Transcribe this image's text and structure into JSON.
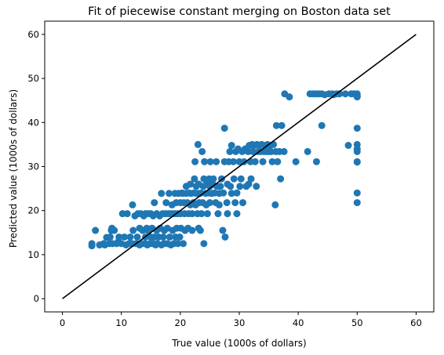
{
  "chart_data": {
    "type": "scatter",
    "title": "Fit of piecewise constant merging on Boston data set",
    "xlabel": "True value (1000s of dollars)",
    "ylabel": "Predicted value (1000s of dollars)",
    "xlim": [
      -3,
      63
    ],
    "ylim": [
      -3,
      63
    ],
    "xticks": [
      "0",
      "10",
      "20",
      "30",
      "40",
      "50",
      "60"
    ],
    "yticks": [
      "0",
      "10",
      "20",
      "30",
      "40",
      "50",
      "60"
    ],
    "grid": false,
    "legend": "none",
    "colors": {
      "points": "#1f77b4",
      "reference_line": "#000000"
    },
    "reference_line": {
      "x": [
        0,
        60
      ],
      "y": [
        0,
        60
      ]
    },
    "series": [
      {
        "points": [
          [
            5,
            12.5
          ],
          [
            5,
            12
          ],
          [
            5.6,
            15.5
          ],
          [
            6.3,
            12.2
          ],
          [
            7,
            12.5
          ],
          [
            7.2,
            12.2
          ],
          [
            7.5,
            13.9
          ],
          [
            8,
            12.5
          ],
          [
            8.1,
            14
          ],
          [
            8.3,
            15.5
          ],
          [
            8.4,
            16
          ],
          [
            8.5,
            12.5
          ],
          [
            8.8,
            15.5
          ],
          [
            9.2,
            12.5
          ],
          [
            9.5,
            13
          ],
          [
            9.6,
            14
          ],
          [
            10,
            12.5
          ],
          [
            10.2,
            19.3
          ],
          [
            10.5,
            14
          ],
          [
            10.8,
            12.2
          ],
          [
            11,
            19.3
          ],
          [
            11.3,
            12.5
          ],
          [
            11.5,
            14
          ],
          [
            11.8,
            12.5
          ],
          [
            11.9,
            21.3
          ],
          [
            12,
            15.5
          ],
          [
            12.3,
            18.8
          ],
          [
            12.5,
            12.5
          ],
          [
            12.7,
            14
          ],
          [
            12.8,
            19.3
          ],
          [
            13.1,
            16
          ],
          [
            13.1,
            12.2
          ],
          [
            13.3,
            19.3
          ],
          [
            13.5,
            12.5
          ],
          [
            13.6,
            15.5
          ],
          [
            13.8,
            18.8
          ],
          [
            14,
            12.5
          ],
          [
            14.1,
            14
          ],
          [
            14.1,
            19.3
          ],
          [
            14.3,
            16
          ],
          [
            14.4,
            12.2
          ],
          [
            14.5,
            15.5
          ],
          [
            14.6,
            19.3
          ],
          [
            14.8,
            12.5
          ],
          [
            15,
            14
          ],
          [
            15,
            19.3
          ],
          [
            15.2,
            16
          ],
          [
            15.3,
            12.5
          ],
          [
            15.4,
            18.8
          ],
          [
            15.6,
            14
          ],
          [
            15.6,
            21.8
          ],
          [
            15.8,
            12.2
          ],
          [
            16,
            15.5
          ],
          [
            16,
            19.3
          ],
          [
            16.1,
            12.5
          ],
          [
            16.3,
            14
          ],
          [
            16.5,
            18.8
          ],
          [
            16.6,
            16
          ],
          [
            16.8,
            12.2
          ],
          [
            16.8,
            23.9
          ],
          [
            17,
            19.3
          ],
          [
            17.1,
            14
          ],
          [
            17.2,
            12.5
          ],
          [
            17.3,
            15.5
          ],
          [
            17.5,
            19.3
          ],
          [
            17.6,
            21.8
          ],
          [
            17.8,
            12.5
          ],
          [
            17.8,
            16
          ],
          [
            18,
            19.3
          ],
          [
            18.1,
            23.9
          ],
          [
            18.2,
            14
          ],
          [
            18.4,
            12.2
          ],
          [
            18.5,
            19.3
          ],
          [
            18.6,
            21.3
          ],
          [
            18.7,
            15.5
          ],
          [
            18.9,
            12.5
          ],
          [
            19,
            19.3
          ],
          [
            19.1,
            23.9
          ],
          [
            19.2,
            14
          ],
          [
            19.3,
            21.8
          ],
          [
            19.4,
            16
          ],
          [
            19.5,
            19.3
          ],
          [
            19.6,
            12.5
          ],
          [
            19.7,
            23.9
          ],
          [
            19.9,
            14
          ],
          [
            20,
            21.8
          ],
          [
            20,
            19.3
          ],
          [
            20.1,
            16
          ],
          [
            20.3,
            24
          ],
          [
            20.4,
            23.9
          ],
          [
            20.5,
            12.5
          ],
          [
            20.6,
            21.8
          ],
          [
            20.7,
            19.3
          ],
          [
            20.8,
            15.5
          ],
          [
            21,
            23.9
          ],
          [
            21,
            25.5
          ],
          [
            21.2,
            21.8
          ],
          [
            21.3,
            16
          ],
          [
            21.4,
            19.3
          ],
          [
            21.5,
            24
          ],
          [
            21.7,
            21.3
          ],
          [
            21.7,
            26
          ],
          [
            21.8,
            23.9
          ],
          [
            22,
            19.3
          ],
          [
            22,
            15.5
          ],
          [
            22.2,
            21.8
          ],
          [
            22.3,
            24
          ],
          [
            22.4,
            27.2
          ],
          [
            22.5,
            31.1
          ],
          [
            22.6,
            21.3
          ],
          [
            22.7,
            25.5
          ],
          [
            22.8,
            23.9
          ],
          [
            22.9,
            19.3
          ],
          [
            23,
            35
          ],
          [
            23.1,
            26
          ],
          [
            23.1,
            16
          ],
          [
            23.2,
            21.8
          ],
          [
            23.3,
            23.9
          ],
          [
            23.4,
            15.5
          ],
          [
            23.5,
            24
          ],
          [
            23.6,
            19.3
          ],
          [
            23.7,
            33.4
          ],
          [
            23.8,
            21.8
          ],
          [
            23.9,
            25.5
          ],
          [
            24,
            27.2
          ],
          [
            24,
            12.5
          ],
          [
            24.1,
            31.1
          ],
          [
            24.3,
            23.9
          ],
          [
            24.4,
            21.3
          ],
          [
            24.5,
            26
          ],
          [
            24.6,
            19.3
          ],
          [
            24.8,
            24
          ],
          [
            24.9,
            27.2
          ],
          [
            25,
            25.5
          ],
          [
            25,
            21.8
          ],
          [
            25.1,
            31.1
          ],
          [
            25.3,
            23.9
          ],
          [
            25.5,
            26
          ],
          [
            25.6,
            27.2
          ],
          [
            25.8,
            24
          ],
          [
            26,
            21.8
          ],
          [
            26.1,
            31.1
          ],
          [
            26.2,
            25.5
          ],
          [
            26.4,
            19.3
          ],
          [
            26.6,
            23.9
          ],
          [
            26.6,
            21.3
          ],
          [
            26.8,
            25.5
          ],
          [
            27,
            27.2
          ],
          [
            27.2,
            15.5
          ],
          [
            27.3,
            24
          ],
          [
            27.5,
            31.1
          ],
          [
            27.5,
            38.7
          ],
          [
            27.6,
            14
          ],
          [
            27.9,
            21.8
          ],
          [
            28,
            19.3
          ],
          [
            28,
            26
          ],
          [
            28.2,
            31.1
          ],
          [
            28.4,
            33.4
          ],
          [
            28.5,
            25.5
          ],
          [
            28.7,
            34.8
          ],
          [
            28.7,
            23.9
          ],
          [
            29,
            31.1
          ],
          [
            29.1,
            27.2
          ],
          [
            29.3,
            21.8
          ],
          [
            29.4,
            33.4
          ],
          [
            29.6,
            19.3
          ],
          [
            29.6,
            24
          ],
          [
            29.8,
            34
          ],
          [
            30,
            31.1
          ],
          [
            30.1,
            25.5
          ],
          [
            30.3,
            27.2
          ],
          [
            30.5,
            33.4
          ],
          [
            30.6,
            21.8
          ],
          [
            30.8,
            31.1
          ],
          [
            31,
            34
          ],
          [
            31.2,
            25.5
          ],
          [
            31.5,
            33.4
          ],
          [
            31.6,
            26
          ],
          [
            31.7,
            34.8
          ],
          [
            31.9,
            31.1
          ],
          [
            32,
            27.2
          ],
          [
            32.2,
            35
          ],
          [
            32.3,
            33.4
          ],
          [
            32.5,
            34.8
          ],
          [
            32.7,
            31.1
          ],
          [
            32.9,
            25.5
          ],
          [
            33,
            35
          ],
          [
            33.2,
            33.4
          ],
          [
            33.4,
            34.8
          ],
          [
            33.6,
            33.4
          ],
          [
            33.8,
            35
          ],
          [
            34,
            31.1
          ],
          [
            34.2,
            33.4
          ],
          [
            34.4,
            34.8
          ],
          [
            34.6,
            33.4
          ],
          [
            34.8,
            35
          ],
          [
            35,
            33.4
          ],
          [
            35.2,
            34.8
          ],
          [
            35.4,
            33.4
          ],
          [
            35.6,
            31.1
          ],
          [
            35.8,
            35
          ],
          [
            36.1,
            21.3
          ],
          [
            36.2,
            33.4
          ],
          [
            36.3,
            39.3
          ],
          [
            36.5,
            31.1
          ],
          [
            36.8,
            33.4
          ],
          [
            37,
            27.2
          ],
          [
            37.2,
            39.3
          ],
          [
            37.6,
            33.4
          ],
          [
            37.7,
            46.5
          ],
          [
            38.5,
            45.8
          ],
          [
            39.6,
            31.1
          ],
          [
            41.6,
            33.4
          ],
          [
            42,
            46.5
          ],
          [
            42.5,
            46.5
          ],
          [
            43,
            46.5
          ],
          [
            43.1,
            31.1
          ],
          [
            43.5,
            46.5
          ],
          [
            44,
            39.3
          ],
          [
            44,
            46.5
          ],
          [
            44.5,
            46.3
          ],
          [
            45.2,
            46.5
          ],
          [
            45.8,
            46.5
          ],
          [
            46,
            46.3
          ],
          [
            46.5,
            46.5
          ],
          [
            47,
            46.5
          ],
          [
            48,
            46.5
          ],
          [
            48.5,
            34.8
          ],
          [
            49,
            46.5
          ],
          [
            49.5,
            46.5
          ],
          [
            50,
            46.5
          ],
          [
            50,
            46
          ],
          [
            50,
            45.8
          ],
          [
            50,
            38.7
          ],
          [
            50,
            35
          ],
          [
            50,
            34
          ],
          [
            50,
            33.4
          ],
          [
            50,
            31.1
          ],
          [
            50,
            31
          ],
          [
            50,
            24
          ],
          [
            50,
            21.8
          ]
        ]
      }
    ]
  }
}
